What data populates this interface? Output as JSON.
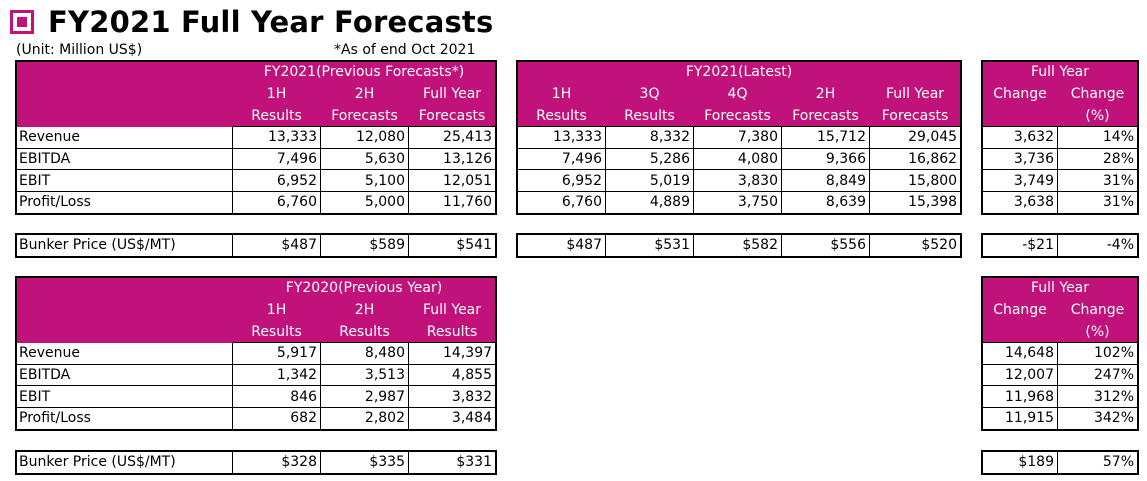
{
  "title": "FY2021 Full Year Forecasts",
  "unit_note": "(Unit: Million US$)",
  "as_of_note": "*As of end Oct 2021",
  "accent_color": "#c0127a",
  "row_labels": [
    "Revenue",
    "EBITDA",
    "EBIT",
    "Profit/Loss"
  ],
  "bunker_label": "Bunker Price (US$/MT)",
  "prev_forecast": {
    "group": "FY2021(Previous Forecasts*)",
    "cols": [
      [
        "1H",
        "Results"
      ],
      [
        "2H",
        "Forecasts"
      ],
      [
        "Full Year",
        "Forecasts"
      ]
    ],
    "rows": [
      [
        "13,333",
        "12,080",
        "25,413"
      ],
      [
        "7,496",
        "5,630",
        "13,126"
      ],
      [
        "6,952",
        "5,100",
        "12,051"
      ],
      [
        "6,760",
        "5,000",
        "11,760"
      ]
    ],
    "bunker": [
      "$487",
      "$589",
      "$541"
    ]
  },
  "latest": {
    "group": "FY2021(Latest)",
    "cols": [
      [
        "1H",
        "Results"
      ],
      [
        "3Q",
        "Results"
      ],
      [
        "4Q",
        "Forecasts"
      ],
      [
        "2H",
        "Forecasts"
      ],
      [
        "Full Year",
        "Forecasts"
      ]
    ],
    "rows": [
      [
        "13,333",
        "8,332",
        "7,380",
        "15,712",
        "29,045"
      ],
      [
        "7,496",
        "5,286",
        "4,080",
        "9,366",
        "16,862"
      ],
      [
        "6,952",
        "5,019",
        "3,830",
        "8,849",
        "15,800"
      ],
      [
        "6,760",
        "4,889",
        "3,750",
        "8,639",
        "15,398"
      ]
    ],
    "bunker": [
      "$487",
      "$531",
      "$582",
      "$556",
      "$520"
    ]
  },
  "change_top": {
    "group": "Full Year",
    "cols": [
      [
        "Change",
        ""
      ],
      [
        "Change",
        "(%)"
      ]
    ],
    "rows": [
      [
        "3,632",
        "14%"
      ],
      [
        "3,736",
        "28%"
      ],
      [
        "3,749",
        "31%"
      ],
      [
        "3,638",
        "31%"
      ]
    ],
    "bunker": [
      "-$21",
      "-4%"
    ]
  },
  "prev_year": {
    "group": "FY2020(Previous Year)",
    "cols": [
      [
        "1H",
        "Results"
      ],
      [
        "2H",
        "Results"
      ],
      [
        "Full Year",
        "Results"
      ]
    ],
    "rows": [
      [
        "5,917",
        "8,480",
        "14,397"
      ],
      [
        "1,342",
        "3,513",
        "4,855"
      ],
      [
        "846",
        "2,987",
        "3,832"
      ],
      [
        "682",
        "2,802",
        "3,484"
      ]
    ],
    "bunker": [
      "$328",
      "$335",
      "$331"
    ]
  },
  "change_bottom": {
    "group": "Full Year",
    "cols": [
      [
        "Change",
        ""
      ],
      [
        "Change",
        "(%)"
      ]
    ],
    "rows": [
      [
        "14,648",
        "102%"
      ],
      [
        "12,007",
        "247%"
      ],
      [
        "11,968",
        "312%"
      ],
      [
        "11,915",
        "342%"
      ]
    ],
    "bunker": [
      "$189",
      "57%"
    ]
  }
}
